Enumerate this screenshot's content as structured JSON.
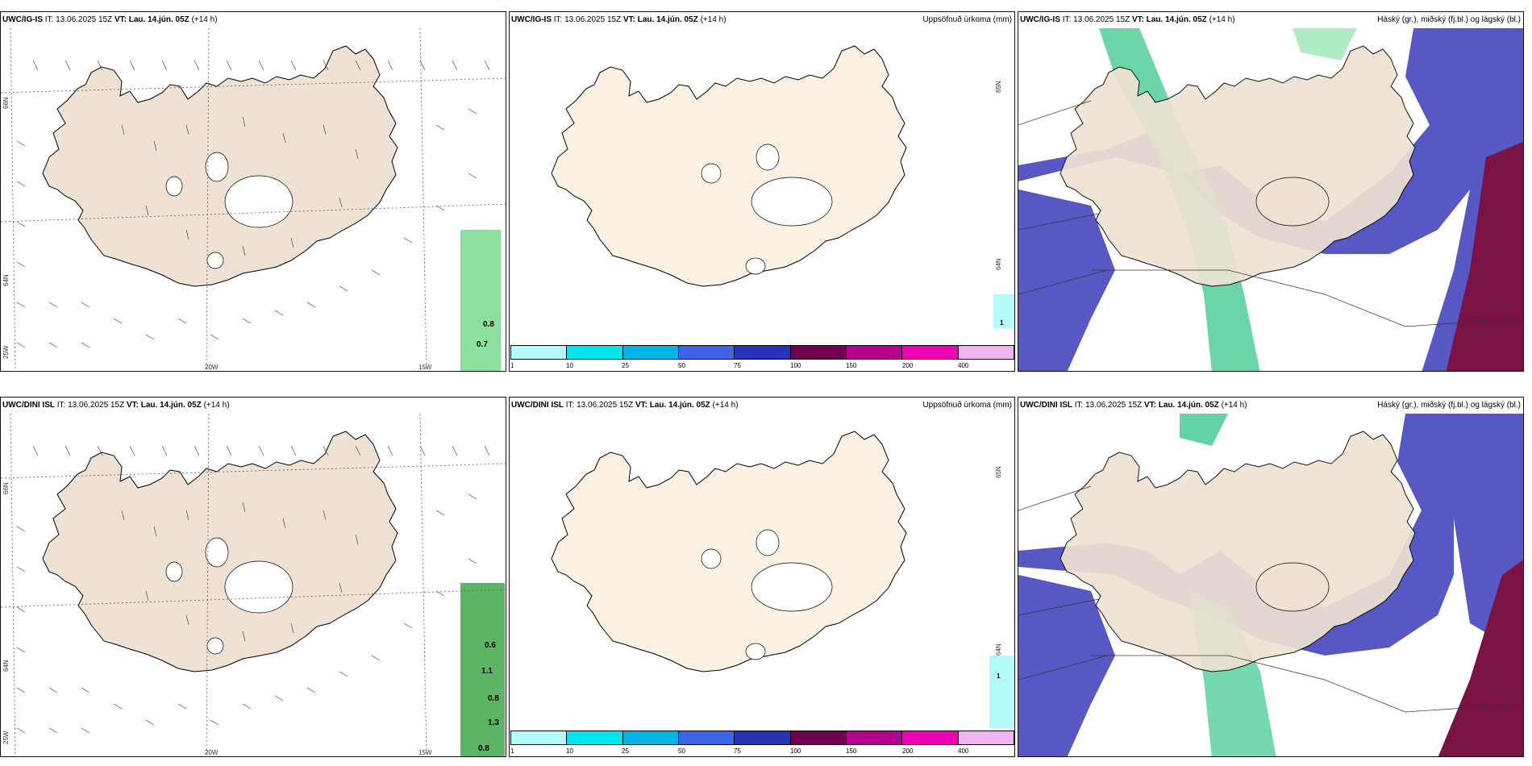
{
  "rows": [
    {
      "model": "UWC/IG-IS",
      "it_label": "IT:",
      "it_value": "13.06.2025 15Z",
      "vt_label": "VT:",
      "vt_value": "Lau. 14.jún. 05Z",
      "lead": "(+14 h)",
      "wind_values": [
        "0.8",
        "0.7"
      ]
    },
    {
      "model": "UWC/DINI ISL",
      "it_label": "IT:",
      "it_value": "13.06.2025 15Z",
      "vt_label": "VT:",
      "vt_value": "Lau. 14.jún. 05Z",
      "lead": "(+14 h)",
      "wind_values": [
        "0.6",
        "1.1",
        "0.8",
        "1.3",
        "0.8"
      ]
    }
  ],
  "precip_title": "Uppsöfnuð úrkoma (mm)",
  "cloud_title": "Háský (gr.), miðský (fj.bl.) og lágský (bl.)",
  "map_labels": {
    "lat_66": "66N",
    "lat_64": "64N",
    "lat_65": "65N",
    "lon_25": "25W",
    "lon_20": "20W",
    "lon_15": "15W"
  },
  "precip_marker": "1",
  "colorbar": {
    "ticks": [
      "1",
      "10",
      "25",
      "50",
      "75",
      "100",
      "150",
      "200",
      "400"
    ],
    "colors": [
      "#b4fafa",
      "#00e6f0",
      "#00b4e6",
      "#3c64e6",
      "#2832b4",
      "#6e0050",
      "#b4008c",
      "#f000b4",
      "#f0b4f0"
    ]
  },
  "colors": {
    "land": "#efe2d4",
    "land_precip": "#fdf1e4",
    "high_cloud": "#3ccc8c",
    "mid_cloud": "#5050c0",
    "low_cloud": "#780a3c",
    "precip_green": "#30c050"
  }
}
